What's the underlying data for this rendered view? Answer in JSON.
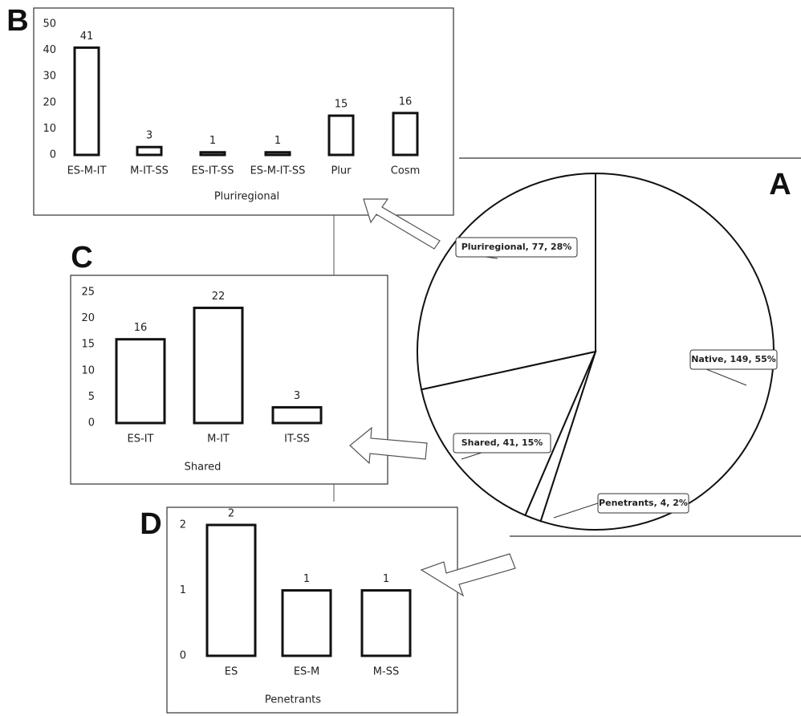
{
  "chart_data": [
    {
      "type": "pie",
      "panel": "A",
      "categories": [
        "Native",
        "Penetrants",
        "Shared",
        "Pluriregional"
      ],
      "values": [
        149,
        4,
        41,
        77
      ],
      "value_labels": [
        "Native, 149, 55%",
        "Penetrants, 4, 2%",
        "Shared, 41, 15%",
        "Pluriregional, 77, 28%"
      ]
    },
    {
      "type": "bar",
      "panel": "B",
      "x_label": "Pluriregional",
      "categories": [
        "ES-M-IT",
        "M-IT-SS",
        "ES-IT-SS",
        "ES-M-IT-SS",
        "Plur",
        "Cosm"
      ],
      "values": [
        41,
        3,
        1,
        1,
        15,
        16
      ],
      "ylim": [
        0,
        50
      ],
      "yticks": [
        0,
        10,
        20,
        30,
        40,
        50
      ]
    },
    {
      "type": "bar",
      "panel": "C",
      "x_label": "Shared",
      "categories": [
        "ES-IT",
        "M-IT",
        "IT-SS"
      ],
      "values": [
        16,
        22,
        3
      ],
      "ylim": [
        0,
        25
      ],
      "yticks": [
        0,
        5,
        10,
        15,
        20,
        25
      ]
    },
    {
      "type": "bar",
      "panel": "D",
      "x_label": "Penetrants",
      "categories": [
        "ES",
        "ES-M",
        "M-SS"
      ],
      "values": [
        2,
        1,
        1
      ],
      "ylim": [
        0,
        2
      ],
      "yticks": [
        0,
        1,
        2
      ]
    }
  ]
}
